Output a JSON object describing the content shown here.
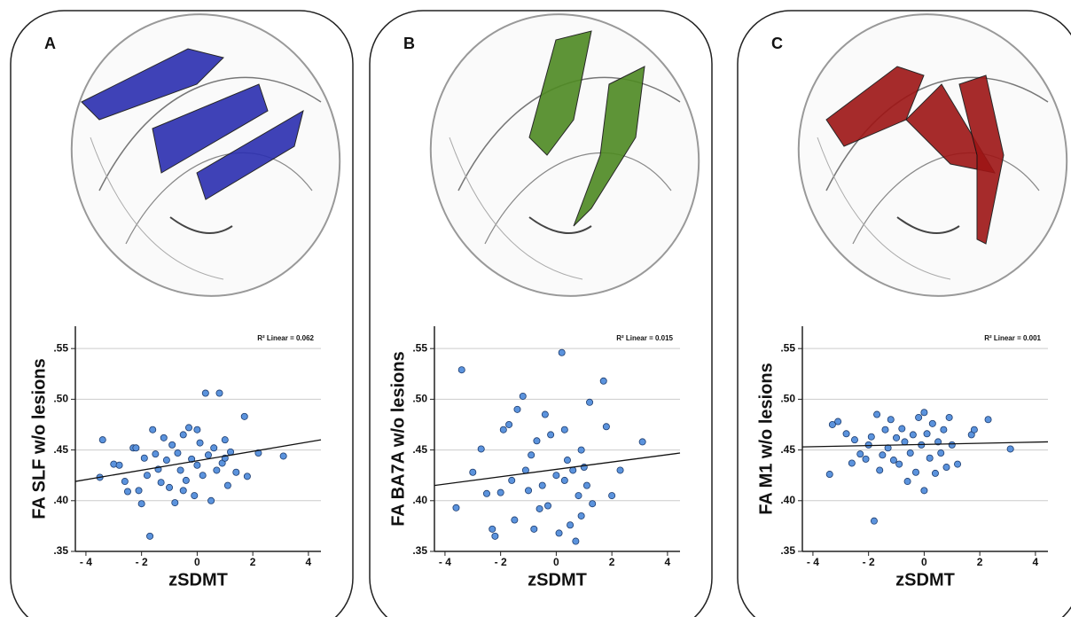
{
  "chart_data": [
    {
      "type": "scatter",
      "panel_label": "A",
      "tract_color": "#2b2fb0",
      "color": "#5b93dd",
      "annotation": "R² Linear = 0.062",
      "x_label": "zSDMT",
      "y_label": "FA SLF w/o lesions",
      "xlim": [
        -4.38,
        4.45
      ],
      "ylim": [
        0.35,
        0.572
      ],
      "xticks": [
        {
          "value": -4,
          "label": "- 4"
        },
        {
          "value": -2,
          "label": "- 2"
        },
        0,
        2,
        4
      ],
      "yticks": [
        {
          "value": 0.35,
          "label": ".35"
        },
        {
          "value": 0.4,
          "label": ".40"
        },
        {
          "value": 0.45,
          "label": ".45"
        },
        {
          "value": 0.5,
          "label": ".50"
        },
        {
          "value": 0.55,
          "label": ".55"
        }
      ],
      "grid": true,
      "x": [
        -3.4,
        -3.5,
        -3.0,
        -2.8,
        -2.6,
        -2.5,
        -2.3,
        -2.2,
        -2.0,
        -2.1,
        -1.9,
        -1.8,
        -1.7,
        -1.6,
        -1.5,
        -1.4,
        -1.3,
        -1.2,
        -1.1,
        -1.0,
        -0.9,
        -0.8,
        -0.7,
        -0.6,
        -0.5,
        -0.4,
        -0.3,
        -0.2,
        -0.1,
        0.0,
        0.1,
        0.2,
        0.3,
        0.4,
        0.5,
        0.6,
        0.7,
        0.8,
        0.9,
        1.0,
        1.1,
        1.2,
        1.4,
        1.7,
        1.8,
        2.2,
        3.1,
        0.0,
        -0.5,
        1.0
      ],
      "values": [
        0.46,
        0.423,
        0.436,
        0.435,
        0.419,
        0.409,
        0.452,
        0.452,
        0.397,
        0.41,
        0.442,
        0.425,
        0.365,
        0.47,
        0.446,
        0.431,
        0.418,
        0.462,
        0.44,
        0.413,
        0.455,
        0.398,
        0.447,
        0.43,
        0.465,
        0.42,
        0.472,
        0.441,
        0.405,
        0.435,
        0.457,
        0.425,
        0.506,
        0.445,
        0.4,
        0.452,
        0.43,
        0.506,
        0.437,
        0.46,
        0.415,
        0.448,
        0.428,
        0.483,
        0.424,
        0.447,
        0.444,
        0.47,
        0.41,
        0.442
      ],
      "fit_line": {
        "x": [
          -4.38,
          4.45
        ],
        "y": [
          0.419,
          0.46
        ]
      }
    },
    {
      "type": "scatter",
      "panel_label": "B",
      "tract_color": "#4e8a22",
      "color": "#5b93dd",
      "annotation": "R² Linear = 0.015",
      "x_label": "zSDMT",
      "y_label": "FA BA7A w/o lesions",
      "xlim": [
        -4.38,
        4.45
      ],
      "ylim": [
        0.35,
        0.572
      ],
      "xticks": [
        {
          "value": -4,
          "label": "- 4"
        },
        {
          "value": -2,
          "label": "- 2"
        },
        0,
        2,
        4
      ],
      "yticks": [
        {
          "value": 0.35,
          "label": ".35"
        },
        {
          "value": 0.4,
          "label": ".40"
        },
        {
          "value": 0.45,
          "label": ".45"
        },
        {
          "value": 0.5,
          "label": ".50"
        },
        {
          "value": 0.55,
          "label": ".55"
        }
      ],
      "grid": true,
      "x": [
        -3.4,
        -3.6,
        -3.0,
        -2.7,
        -2.5,
        -2.3,
        -2.2,
        -2.0,
        -1.9,
        -1.7,
        -1.5,
        -1.4,
        -1.2,
        -1.1,
        -1.0,
        -0.9,
        -0.8,
        -0.7,
        -0.5,
        -0.4,
        -0.3,
        -0.2,
        0.0,
        0.1,
        0.2,
        0.3,
        0.4,
        0.5,
        0.6,
        0.7,
        0.8,
        0.9,
        1.0,
        1.1,
        1.2,
        1.3,
        1.7,
        1.8,
        2.0,
        2.3,
        3.1,
        -1.6,
        -0.6,
        0.3,
        0.9
      ],
      "values": [
        0.529,
        0.393,
        0.428,
        0.451,
        0.407,
        0.372,
        0.365,
        0.408,
        0.47,
        0.475,
        0.381,
        0.49,
        0.503,
        0.43,
        0.41,
        0.445,
        0.372,
        0.459,
        0.415,
        0.485,
        0.395,
        0.465,
        0.425,
        0.368,
        0.546,
        0.42,
        0.44,
        0.376,
        0.43,
        0.36,
        0.405,
        0.45,
        0.433,
        0.415,
        0.497,
        0.397,
        0.518,
        0.473,
        0.405,
        0.43,
        0.458,
        0.42,
        0.392,
        0.47,
        0.385
      ],
      "fit_line": {
        "x": [
          -4.38,
          4.45
        ],
        "y": [
          0.415,
          0.447
        ]
      }
    },
    {
      "type": "scatter",
      "panel_label": "C",
      "tract_color": "#9e1515",
      "color": "#5b93dd",
      "annotation": "R² Linear = 0.001",
      "x_label": "zSDMT",
      "y_label": "FA M1 w/o lesions",
      "xlim": [
        -4.38,
        4.45
      ],
      "ylim": [
        0.35,
        0.572
      ],
      "xticks": [
        {
          "value": -4,
          "label": "- 4"
        },
        {
          "value": -2,
          "label": "- 2"
        },
        0,
        2,
        4
      ],
      "yticks": [
        {
          "value": 0.35,
          "label": ".35"
        },
        {
          "value": 0.4,
          "label": ".40"
        },
        {
          "value": 0.45,
          "label": ".45"
        },
        {
          "value": 0.5,
          "label": ".50"
        },
        {
          "value": 0.55,
          "label": ".55"
        }
      ],
      "grid": true,
      "x": [
        -3.4,
        -3.3,
        -3.1,
        -2.8,
        -2.5,
        -2.3,
        -2.1,
        -2.0,
        -1.9,
        -1.8,
        -1.7,
        -1.6,
        -1.5,
        -1.4,
        -1.3,
        -1.2,
        -1.1,
        -1.0,
        -0.9,
        -0.8,
        -0.7,
        -0.6,
        -0.5,
        -0.4,
        -0.3,
        -0.2,
        -0.1,
        0.0,
        0.1,
        0.2,
        0.3,
        0.4,
        0.5,
        0.6,
        0.7,
        0.8,
        0.9,
        1.0,
        1.2,
        1.7,
        2.3,
        3.1,
        -2.6,
        0.0,
        1.8
      ],
      "values": [
        0.426,
        0.475,
        0.478,
        0.466,
        0.46,
        0.446,
        0.441,
        0.455,
        0.463,
        0.38,
        0.485,
        0.43,
        0.445,
        0.47,
        0.452,
        0.48,
        0.44,
        0.462,
        0.436,
        0.471,
        0.458,
        0.419,
        0.447,
        0.465,
        0.428,
        0.482,
        0.455,
        0.41,
        0.466,
        0.442,
        0.476,
        0.427,
        0.458,
        0.447,
        0.47,
        0.433,
        0.482,
        0.455,
        0.436,
        0.465,
        0.48,
        0.451,
        0.437,
        0.487,
        0.47
      ],
      "fit_line": {
        "x": [
          -4.38,
          4.45
        ],
        "y": [
          0.453,
          0.458
        ]
      }
    }
  ]
}
